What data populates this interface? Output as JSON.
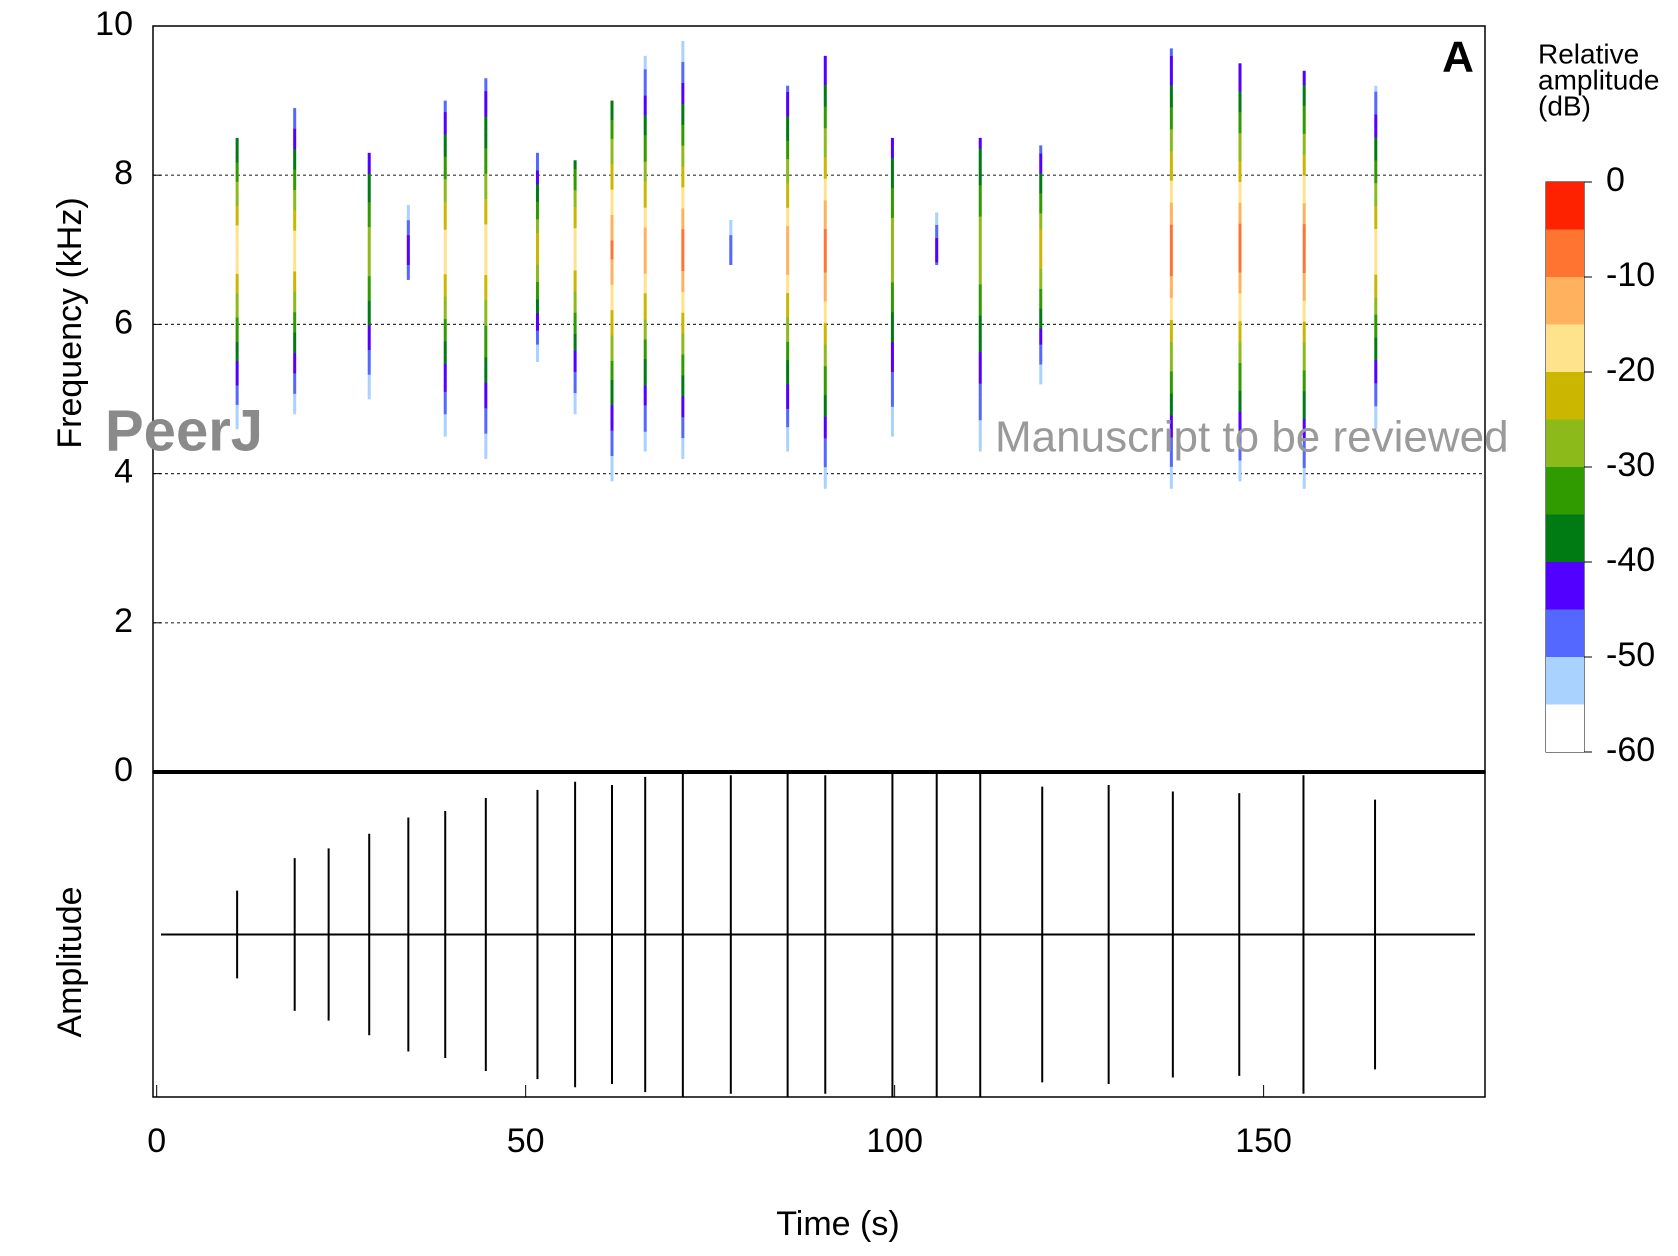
{
  "watermark": {
    "logo": "PeerJ",
    "note": "Manuscript to be reviewed"
  },
  "chart_data": [
    {
      "type": "spectrogram",
      "panel_label": "A",
      "ylabel": "Frequency (kHz)",
      "xlim": [
        -0.5,
        180
      ],
      "ylim": [
        0,
        10
      ],
      "yticks": [
        0,
        2,
        4,
        6,
        8,
        10
      ],
      "grid": true,
      "calls": [
        {
          "x": 10.9,
          "low": 4.6,
          "high": 8.5,
          "peak_freq": 7,
          "peak": -15
        },
        {
          "x": 18.7,
          "low": 4.8,
          "high": 8.9,
          "peak_freq": 7,
          "peak": -15
        },
        {
          "x": 28.8,
          "low": 5.0,
          "high": 8.3,
          "peak_freq": 7,
          "peak": -25
        },
        {
          "x": 34.1,
          "low": 6.6,
          "high": 7.6,
          "peak_freq": 7,
          "peak": -40
        },
        {
          "x": 39.1,
          "low": 4.5,
          "high": 9.0,
          "peak_freq": 7,
          "peak": -15
        },
        {
          "x": 44.6,
          "low": 4.2,
          "high": 9.3,
          "peak_freq": 7,
          "peak": -15
        },
        {
          "x": 51.6,
          "low": 5.5,
          "high": 8.3,
          "peak_freq": 7,
          "peak": -20
        },
        {
          "x": 56.7,
          "low": 4.8,
          "high": 8.2,
          "peak_freq": 7,
          "peak": -15
        },
        {
          "x": 61.7,
          "low": 3.9,
          "high": 9.0,
          "peak_freq": 7,
          "peak": -8
        },
        {
          "x": 66.2,
          "low": 4.3,
          "high": 9.6,
          "peak_freq": 7,
          "peak": -10
        },
        {
          "x": 71.3,
          "low": 4.2,
          "high": 9.8,
          "peak_freq": 7,
          "peak": -5
        },
        {
          "x": 77.8,
          "low": 6.8,
          "high": 7.4,
          "peak_freq": 7,
          "peak": -45
        },
        {
          "x": 85.5,
          "low": 4.3,
          "high": 9.2,
          "peak_freq": 7,
          "peak": -10
        },
        {
          "x": 90.6,
          "low": 3.8,
          "high": 9.6,
          "peak_freq": 7,
          "peak": -5
        },
        {
          "x": 99.7,
          "low": 4.5,
          "high": 8.5,
          "peak_freq": 7,
          "peak": -25
        },
        {
          "x": 105.7,
          "low": 6.8,
          "high": 7.5,
          "peak_freq": 7,
          "peak": -40
        },
        {
          "x": 111.6,
          "low": 4.3,
          "high": 8.5,
          "peak_freq": 7,
          "peak": -25
        },
        {
          "x": 119.8,
          "low": 5.2,
          "high": 8.4,
          "peak_freq": 7,
          "peak": -20
        },
        {
          "x": 137.5,
          "low": 3.8,
          "high": 9.7,
          "peak_freq": 7,
          "peak": -5
        },
        {
          "x": 146.8,
          "low": 3.9,
          "high": 9.5,
          "peak_freq": 7,
          "peak": -5
        },
        {
          "x": 155.5,
          "low": 3.8,
          "high": 9.4,
          "peak_freq": 7,
          "peak": -5
        },
        {
          "x": 165.2,
          "low": 4.6,
          "high": 9.2,
          "peak_freq": 7,
          "peak": -15
        }
      ],
      "colorbar": {
        "label": [
          "Relative",
          "amplitude",
          "(dB)"
        ],
        "lim": [
          -60,
          0
        ],
        "ticks": [
          0,
          -10,
          -20,
          -30,
          -40,
          -50,
          -60
        ],
        "colors": [
          "#ff2200",
          "#ff7430",
          "#ffb25e",
          "#ffe38c",
          "#cbb600",
          "#8cba1a",
          "#2f9b00",
          "#007a12",
          "#5200ff",
          "#5468ff",
          "#aad2ff",
          "#ffffff"
        ]
      }
    },
    {
      "type": "waveform",
      "ylabel": "Amplitude",
      "xlabel": "Time (s)",
      "xlim": [
        -0.5,
        180
      ],
      "xticks": [
        0,
        50,
        100,
        150
      ],
      "ylim": [
        -1,
        1
      ],
      "color": "#000000",
      "x": [
        10.9,
        18.7,
        23.3,
        28.8,
        34.1,
        39.1,
        44.6,
        51.6,
        56.7,
        61.7,
        66.2,
        71.3,
        77.8,
        85.5,
        90.6,
        99.7,
        105.7,
        111.6,
        120.0,
        129.0,
        137.7,
        146.7,
        155.4,
        165.1
      ],
      "values": [
        0.27,
        0.47,
        0.53,
        0.62,
        0.72,
        0.76,
        0.84,
        0.89,
        0.94,
        0.92,
        0.97,
        1.0,
        0.98,
        1.0,
        0.98,
        1.0,
        1.0,
        1.0,
        0.91,
        0.92,
        0.88,
        0.87,
        0.98,
        0.83
      ]
    }
  ]
}
